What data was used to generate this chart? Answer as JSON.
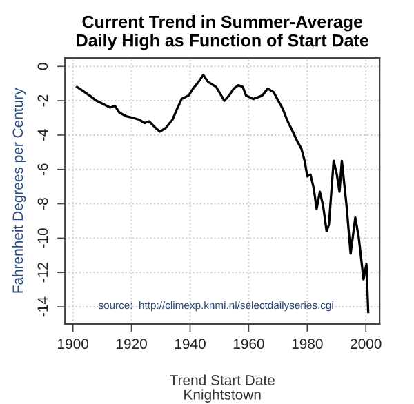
{
  "chart_data": {
    "type": "line",
    "title": "Current Trend in Summer-Average\nDaily High as Function of Start Date",
    "xlabel": "Trend Start Date\nKnightstown",
    "ylabel": "Fahrenheit Degrees per Century",
    "x": [
      1901.4,
      1905.7,
      1908,
      1910.4,
      1912.7,
      1914.3,
      1915.9,
      1918.2,
      1920.6,
      1922.5,
      1924.5,
      1926,
      1927.7,
      1929.7,
      1931.6,
      1934,
      1935.5,
      1937.1,
      1939.5,
      1941,
      1942.9,
      1944.5,
      1946.1,
      1948.9,
      1951.7,
      1953.3,
      1954.9,
      1956.5,
      1958,
      1959.1,
      1961.5,
      1963.1,
      1964.6,
      1966.5,
      1968.5,
      1970.1,
      1971.7,
      1973.3,
      1974.8,
      1976.4,
      1978,
      1979.1,
      1980,
      1981.1,
      1982.2,
      1983.2,
      1984.3,
      1985.4,
      1986.6,
      1987.4,
      1989,
      1990.1,
      1991,
      1991.8,
      1993.4,
      1994.8,
      1996.4,
      1997.6,
      1999.2,
      2000.2,
      2000.8
    ],
    "series": [
      {
        "color": "#000000",
        "values": [
          -1.2,
          -1.7,
          -2.0,
          -2.2,
          -2.4,
          -2.3,
          -2.7,
          -2.9,
          -3.0,
          -3.1,
          -3.3,
          -3.2,
          -3.5,
          -3.8,
          -3.6,
          -3.1,
          -2.5,
          -1.9,
          -1.7,
          -1.3,
          -0.9,
          -0.5,
          -0.9,
          -1.2,
          -2.0,
          -1.7,
          -1.3,
          -1.1,
          -1.2,
          -1.7,
          -1.9,
          -1.8,
          -1.7,
          -1.3,
          -1.5,
          -2.0,
          -2.5,
          -3.2,
          -3.7,
          -4.3,
          -4.8,
          -5.5,
          -6.4,
          -6.3,
          -7.1,
          -8.3,
          -7.3,
          -8.1,
          -9.6,
          -9.2,
          -5.5,
          -6.3,
          -7.3,
          -5.5,
          -8.1,
          -10.9,
          -8.8,
          -10.0,
          -12.4,
          -11.5,
          -14.3
        ]
      }
    ],
    "xlim": [
      1897.3,
      2004.7
    ],
    "ylim": [
      -15,
      0.5
    ],
    "xticks": [
      1900,
      1920,
      1940,
      1960,
      1980,
      2000
    ],
    "yticks": [
      {
        "value": 0,
        "label": "0"
      },
      {
        "value": -2,
        "label": "-2"
      },
      {
        "value": -4,
        "label": "-4"
      },
      {
        "value": -6,
        "label": "-6"
      },
      {
        "value": -8,
        "label": "-8"
      },
      {
        "value": -10,
        "label": "-10"
      },
      {
        "value": -12,
        "label": "-12"
      },
      {
        "value": -14,
        "label": "-14"
      }
    ],
    "grid": true,
    "line_style": "solid",
    "annotations": [
      "source:  http://climexp.knmi.nl/selectdailyseries.cgi"
    ]
  }
}
